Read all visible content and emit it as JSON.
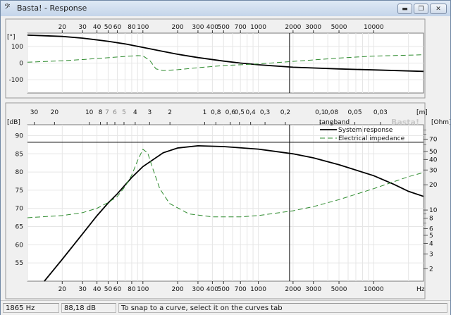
{
  "window": {
    "app_icon": "bass-clef-icon",
    "title": "Basta! - Response",
    "btn_min": "▬",
    "btn_max": "❐",
    "btn_close": "✕"
  },
  "status_bar": {
    "frequency": "1865 Hz",
    "level": "88,18 dB",
    "hint": "To snap to a curve, select it on the curves tab"
  },
  "colors": {
    "plot_bg": "#ffffff",
    "grid": "#e6e6e6",
    "response": "#000000",
    "impedance": "#2e8b2e",
    "cursor": "#000000"
  },
  "chart_data": [
    {
      "type": "line",
      "title": "",
      "xlabel": "",
      "ylabel": "[°]",
      "x_scale": "log",
      "xlim": [
        10,
        27000
      ],
      "ylim": [
        -180,
        180
      ],
      "x_ticks": [
        20,
        30,
        40,
        50,
        60,
        80,
        100,
        200,
        300,
        400,
        500,
        700,
        1000,
        2000,
        3000,
        5000,
        10000
      ],
      "x_tick_labels": [
        "20",
        "30",
        "40",
        "50",
        "60",
        "80",
        "100",
        "200",
        "300",
        "400",
        "500",
        "700",
        "1000",
        "2000",
        "3000",
        "5000",
        "10000"
      ],
      "y_ticks": [
        100,
        0,
        -100
      ],
      "y_tick_labels": [
        "100",
        "0",
        "-100"
      ],
      "cursor_x": 1865,
      "series": [
        {
          "color": "#000000",
          "dash": "none",
          "points": [
            [
              10,
              168
            ],
            [
              20,
              160
            ],
            [
              30,
              150
            ],
            [
              50,
              131
            ],
            [
              70,
              115
            ],
            [
              100,
              94
            ],
            [
              150,
              70
            ],
            [
              200,
              53
            ],
            [
              300,
              33
            ],
            [
              500,
              12
            ],
            [
              700,
              0
            ],
            [
              1000,
              -10
            ],
            [
              2000,
              -25
            ],
            [
              5000,
              -35
            ],
            [
              10000,
              -41
            ],
            [
              27000,
              -50
            ]
          ]
        },
        {
          "color": "#2e8b2e",
          "dash": "7 4",
          "points": [
            [
              10,
              5
            ],
            [
              20,
              14
            ],
            [
              30,
              21
            ],
            [
              50,
              32
            ],
            [
              70,
              40
            ],
            [
              90,
              45
            ],
            [
              100,
              43
            ],
            [
              115,
              15
            ],
            [
              130,
              -35
            ],
            [
              150,
              -45
            ],
            [
              200,
              -40
            ],
            [
              300,
              -28
            ],
            [
              500,
              -15
            ],
            [
              1000,
              -5
            ],
            [
              2000,
              10
            ],
            [
              5000,
              30
            ],
            [
              10000,
              42
            ],
            [
              27000,
              50
            ]
          ]
        }
      ]
    },
    {
      "type": "line",
      "title": "",
      "xlabel": "Hz",
      "ylabel": "[dB]",
      "y2label": "[Ohm]",
      "x_scale": "log",
      "xlim": [
        10,
        27000
      ],
      "ylim": [
        50,
        93
      ],
      "y_ticks": [
        90,
        85,
        80,
        75,
        70,
        65,
        60,
        55
      ],
      "y_tick_labels": [
        "90",
        "85",
        "80",
        "75",
        "70",
        "65",
        "60",
        "55"
      ],
      "x_ticks": [
        20,
        30,
        40,
        50,
        60,
        80,
        100,
        200,
        300,
        400,
        500,
        700,
        1000,
        2000,
        3000,
        5000,
        10000
      ],
      "x_tick_labels": [
        "20",
        "30",
        "40",
        "50",
        "60",
        "80",
        "100",
        "200",
        "300",
        "400",
        "500",
        "700",
        "1000",
        "2000",
        "3000",
        "5000",
        "10000"
      ],
      "wavelength_unit": "[m]",
      "wavelength_ticks": [
        30,
        20,
        10,
        8,
        7,
        6,
        5,
        4,
        3,
        2,
        1,
        0.8,
        0.6,
        0.5,
        0.4,
        0.3,
        0.2,
        0.1,
        0.08,
        0.05,
        0.03
      ],
      "wavelength_tick_labels": [
        "30",
        "20",
        "10",
        "8",
        "7",
        "6",
        "5",
        "4",
        "3",
        "2",
        "1",
        "0,8",
        "0,6",
        "0,5",
        "0,4",
        "0,3",
        "0,2",
        "0,1",
        "0,08",
        "0,05",
        "0,03"
      ],
      "y2_scale": "log",
      "y2lim": [
        1.42,
        104
      ],
      "y2_ticks": [
        70,
        50,
        40,
        30,
        20,
        10,
        8,
        6,
        5,
        4,
        3,
        2
      ],
      "y2_tick_labels": [
        "70",
        "50",
        "40",
        "30",
        "20",
        "10",
        "8",
        "6",
        "5",
        "4",
        "3",
        "2"
      ],
      "y2_minor_ticks": [
        90,
        80,
        60,
        9,
        7
      ],
      "cursor_x": 1865,
      "cursor_y": 88.18,
      "legend": {
        "title": "tangband",
        "position": "top-right",
        "entries": [
          {
            "label": "System response",
            "color": "#000000",
            "dash": "none"
          },
          {
            "label": "Electrical impedance",
            "color": "#2e8b2e",
            "dash": "7 4"
          }
        ]
      },
      "watermark": "Basta!",
      "series": [
        {
          "color": "#000000",
          "dash": "none",
          "axis": "left",
          "points": [
            [
              14,
              50
            ],
            [
              20,
              56
            ],
            [
              30,
              63
            ],
            [
              40,
              68
            ],
            [
              50,
              71.5
            ],
            [
              60,
              74
            ],
            [
              80,
              78.5
            ],
            [
              100,
              81.5
            ],
            [
              150,
              85.3
            ],
            [
              200,
              86.6
            ],
            [
              300,
              87.2
            ],
            [
              500,
              87.0
            ],
            [
              1000,
              86.3
            ],
            [
              2000,
              85.0
            ],
            [
              3000,
              83.9
            ],
            [
              5000,
              82.0
            ],
            [
              10000,
              79.0
            ],
            [
              15000,
              76.6
            ],
            [
              20000,
              74.7
            ],
            [
              27000,
              73.3
            ]
          ]
        },
        {
          "color": "#2e8b2e",
          "dash": "7 4",
          "axis": "right",
          "points": [
            [
              10,
              8.1
            ],
            [
              20,
              8.6
            ],
            [
              30,
              9.3
            ],
            [
              40,
              10.5
            ],
            [
              50,
              12.3
            ],
            [
              60,
              14.5
            ],
            [
              70,
              19
            ],
            [
              80,
              26
            ],
            [
              90,
              39
            ],
            [
              100,
              53
            ],
            [
              110,
              48
            ],
            [
              120,
              33
            ],
            [
              140,
              18
            ],
            [
              170,
              12
            ],
            [
              250,
              9
            ],
            [
              400,
              8.3
            ],
            [
              700,
              8.3
            ],
            [
              1000,
              8.6
            ],
            [
              2000,
              9.8
            ],
            [
              3000,
              11.0
            ],
            [
              5000,
              13.3
            ],
            [
              10000,
              18
            ],
            [
              20000,
              25
            ],
            [
              27000,
              28
            ]
          ]
        }
      ]
    }
  ]
}
